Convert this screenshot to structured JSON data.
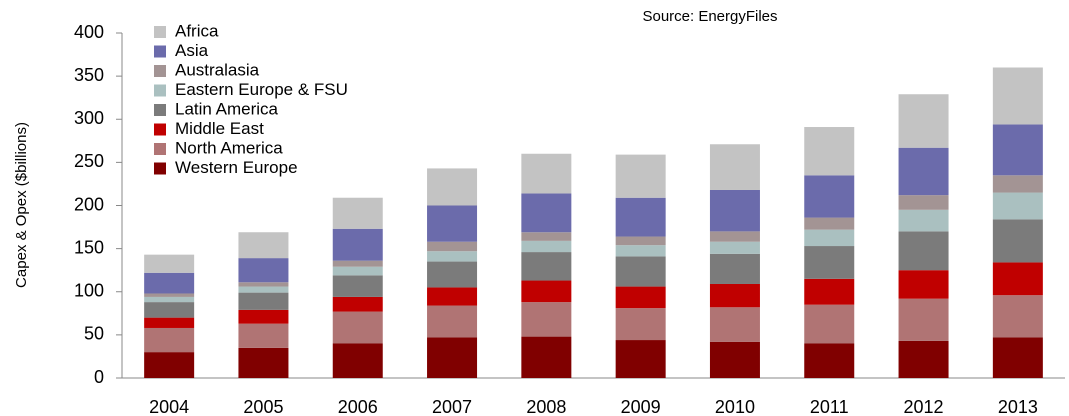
{
  "chart_data": {
    "type": "stacked_bar",
    "source": "Source: EnergyFiles",
    "y_label": "Capex & Opex ($billions)",
    "categories": [
      "2004",
      "2005",
      "2006",
      "2007",
      "2008",
      "2009",
      "2010",
      "2011",
      "2012",
      "2013"
    ],
    "series": [
      {
        "name": "Western Europe",
        "color": "#800000",
        "values": [
          30,
          35,
          40,
          47,
          48,
          44,
          42,
          40,
          43,
          47
        ]
      },
      {
        "name": "North America",
        "color": "#b07474",
        "values": [
          28,
          28,
          37,
          37,
          40,
          37,
          40,
          45,
          49,
          49
        ]
      },
      {
        "name": "Middle East",
        "color": "#c00000",
        "values": [
          12,
          16,
          17,
          21,
          25,
          25,
          27,
          30,
          33,
          38
        ]
      },
      {
        "name": "Latin America",
        "color": "#7b7b7b",
        "values": [
          18,
          20,
          25,
          30,
          33,
          35,
          35,
          38,
          45,
          50
        ]
      },
      {
        "name": "Eastern Europe & FSU",
        "color": "#aac0c0",
        "values": [
          6,
          7,
          10,
          12,
          13,
          13,
          14,
          19,
          25,
          31
        ]
      },
      {
        "name": "Australasia",
        "color": "#a39494",
        "values": [
          4,
          5,
          7,
          11,
          10,
          10,
          12,
          14,
          17,
          20
        ]
      },
      {
        "name": "Asia",
        "color": "#6b6bab",
        "values": [
          24,
          28,
          37,
          42,
          45,
          45,
          48,
          49,
          55,
          59
        ]
      },
      {
        "name": "Africa",
        "color": "#c3c3c3",
        "values": [
          21,
          30,
          36,
          43,
          46,
          50,
          53,
          56,
          62,
          66
        ]
      }
    ],
    "ylim": [
      0,
      400
    ],
    "yticks": [
      0,
      50,
      100,
      150,
      200,
      250,
      300,
      350,
      400
    ],
    "legend": "top-left"
  }
}
